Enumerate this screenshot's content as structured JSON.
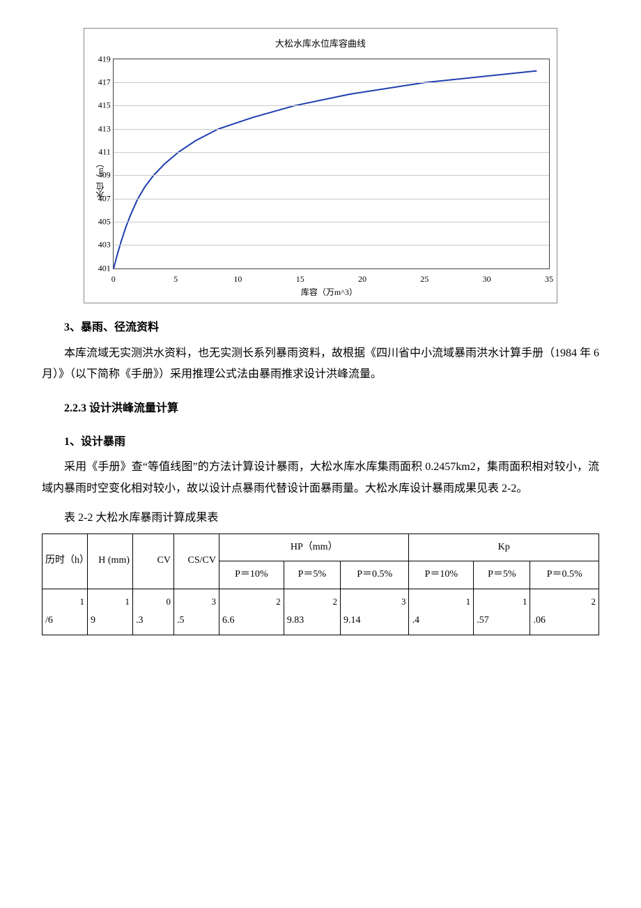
{
  "chart": {
    "type": "line",
    "title": "大松水库水位库容曲线",
    "y_label": "水位（m）",
    "x_label": "库容（万m^3）",
    "ylim": [
      401,
      419
    ],
    "ytick_step": 2,
    "xlim": [
      0,
      35
    ],
    "xtick_step": 5,
    "line_color": "#1f3db0",
    "line_width": 2,
    "grid_color": "#c8c8c8",
    "border_color": "#404040",
    "background_color": "#ffffff",
    "data": [
      {
        "x": 0.0,
        "y": 401.0
      },
      {
        "x": 0.3,
        "y": 402.2
      },
      {
        "x": 0.6,
        "y": 403.3
      },
      {
        "x": 1.0,
        "y": 404.6
      },
      {
        "x": 1.4,
        "y": 405.7
      },
      {
        "x": 1.9,
        "y": 406.9
      },
      {
        "x": 2.5,
        "y": 408.0
      },
      {
        "x": 3.2,
        "y": 409.0
      },
      {
        "x": 4.1,
        "y": 410.0
      },
      {
        "x": 5.2,
        "y": 411.0
      },
      {
        "x": 6.6,
        "y": 412.0
      },
      {
        "x": 8.4,
        "y": 413.0
      },
      {
        "x": 11.2,
        "y": 414.0
      },
      {
        "x": 14.5,
        "y": 415.0
      },
      {
        "x": 19.0,
        "y": 416.0
      },
      {
        "x": 25.0,
        "y": 417.0
      },
      {
        "x": 34.0,
        "y": 418.0
      }
    ]
  },
  "sections": {
    "s3_title": "3、暴雨、径流资料",
    "s3_body": "本库流域无实测洪水资料，也无实测长系列暴雨资料，故根据《四川省中小流域暴雨洪水计算手册（1984 年 6 月）》（以下简称《手册》）采用推理公式法由暴雨推求设计洪峰流量。",
    "s223_title": "2.2.3 设计洪峰流量计算",
    "s1_title": "1、设计暴雨",
    "s1_body": "采用《手册》查“等值线图”的方法计算设计暴雨，大松水库水库集雨面积 0.2457km2，集雨面积相对较小，流域内暴雨时空变化相对较小，故以设计点暴雨代替设计面暴雨量。大松水库设计暴雨成果见表 2-2。",
    "table_caption": "表 2-2 大松水库暴雨计算成果表"
  },
  "table": {
    "columns": {
      "c1": "历时（h）",
      "c2": "H (mm)",
      "c3": "CV",
      "c4": "CS/CV",
      "hp_group": "HP（mm）",
      "kp_group": "Kp",
      "p10": "P＝10%",
      "p5": "P＝5%",
      "p05": "P＝0.5%"
    },
    "row1": {
      "c1_lead": "1",
      "c1_rest": "/6",
      "c2_lead": "1",
      "c2_rest": "9",
      "c3_lead": "0",
      "c3_rest": ".3",
      "c4_lead": "3",
      "c4_rest": ".5",
      "hp10_lead": "2",
      "hp10_rest": "6.6",
      "hp5_lead": "2",
      "hp5_rest": "9.83",
      "hp05_lead": "3",
      "hp05_rest": "9.14",
      "kp10_lead": "1",
      "kp10_rest": ".4",
      "kp5_lead": "1",
      "kp5_rest": ".57",
      "kp05_lead": "2",
      "kp05_rest": ".06"
    }
  }
}
